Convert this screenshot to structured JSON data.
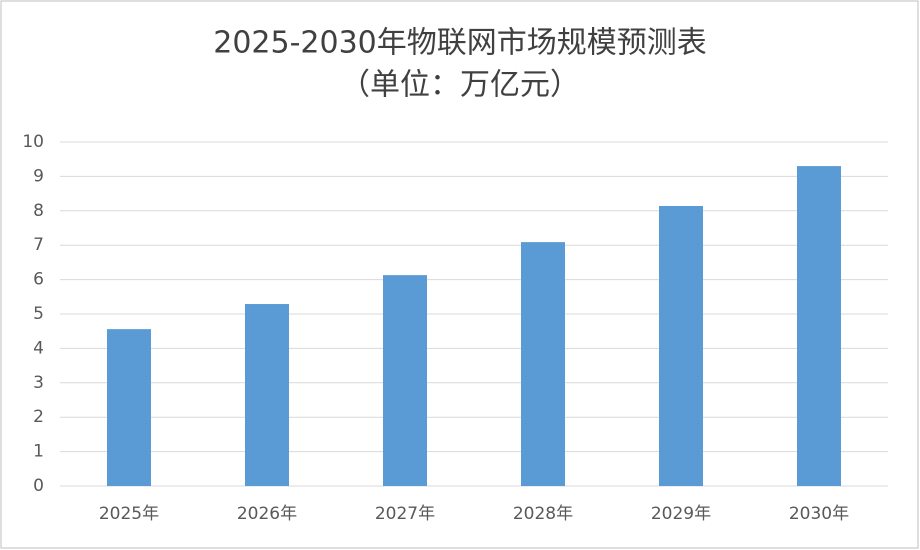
{
  "chart_data": {
    "type": "bar",
    "title": "2025-2030年物联网市场规模预测表",
    "subtitle": "（单位：万亿元）",
    "categories": [
      "2025年",
      "2026年",
      "2027年",
      "2028年",
      "2029年",
      "2030年"
    ],
    "values": [
      4.56,
      5.29,
      6.13,
      7.09,
      8.14,
      9.3
    ],
    "color": "#5b9bd5",
    "ylim": [
      0,
      10
    ],
    "yticks": [
      0,
      1,
      2,
      3,
      4,
      5,
      6,
      7,
      8,
      9,
      10
    ],
    "grid": true
  }
}
